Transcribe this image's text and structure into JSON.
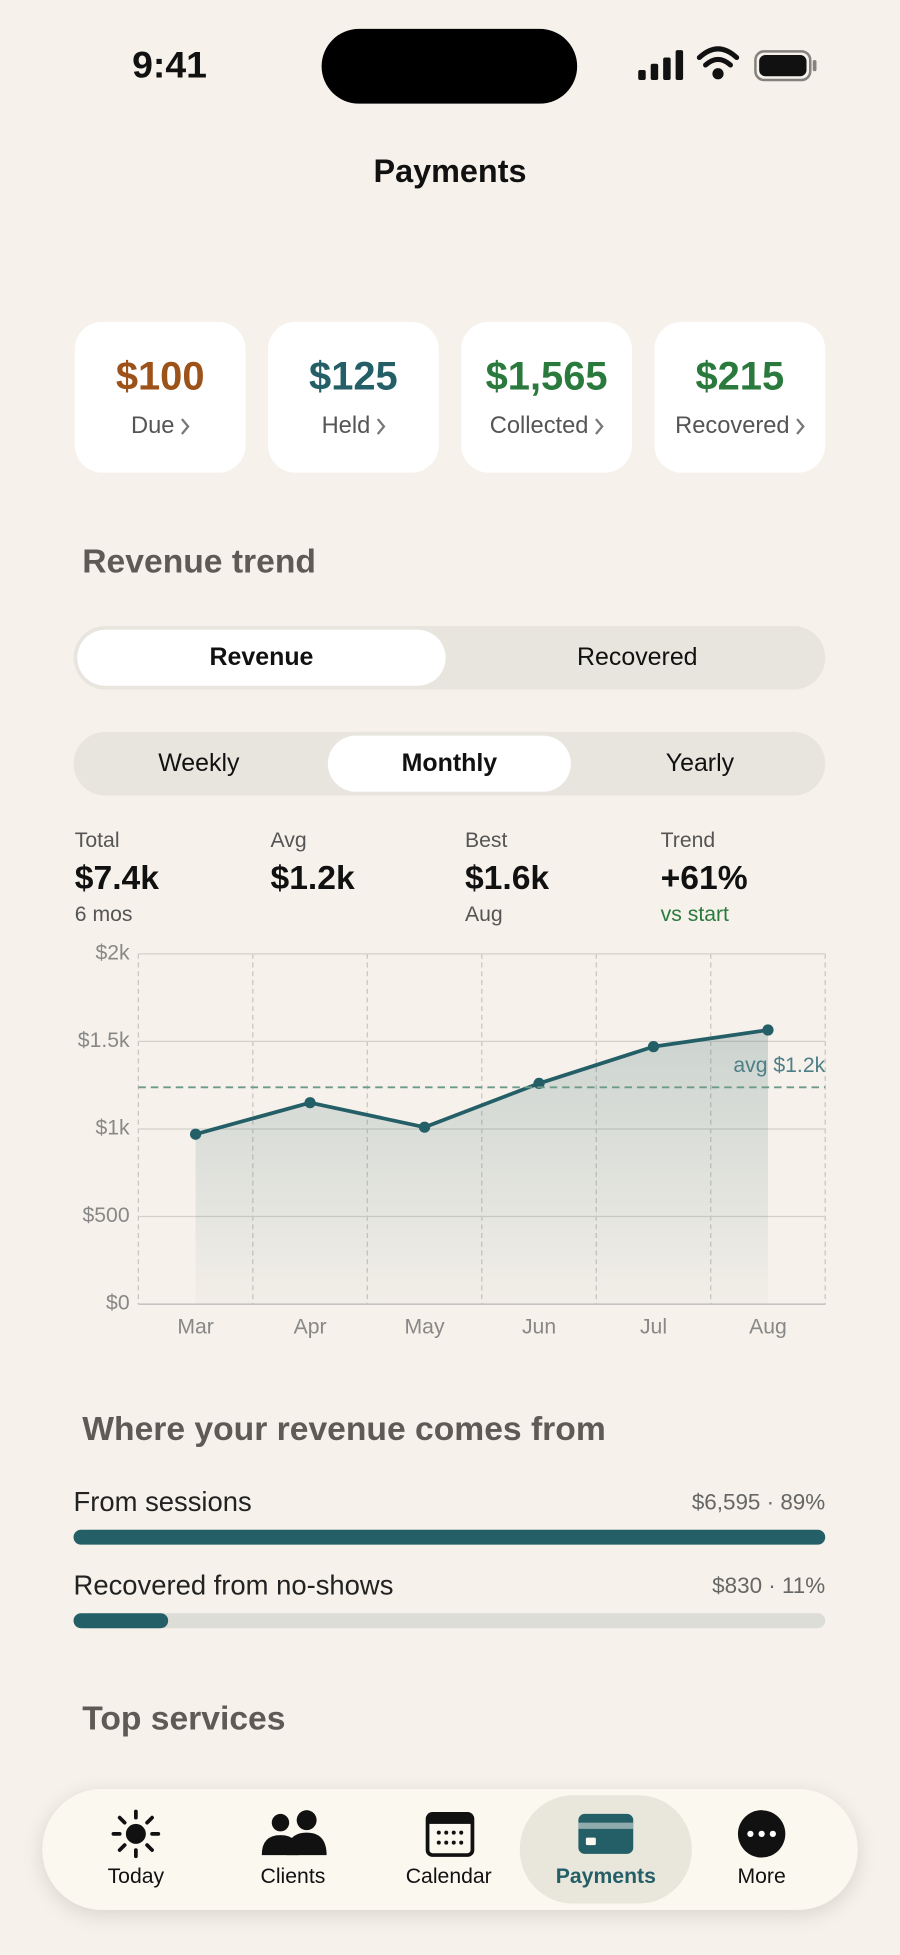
{
  "status_bar": {
    "time": "9:41"
  },
  "header": {
    "title": "Payments"
  },
  "summary_cards": [
    {
      "amount": "$100",
      "label": "Due",
      "color": "#9c5219"
    },
    {
      "amount": "$125",
      "label": "Held",
      "color": "#245e67"
    },
    {
      "amount": "$1,565",
      "label": "Collected",
      "color": "#2a7a3e"
    },
    {
      "amount": "$215",
      "label": "Recovered",
      "color": "#2a7a3e"
    }
  ],
  "revenue_trend": {
    "title": "Revenue trend",
    "mode_toggle": {
      "options": [
        "Revenue",
        "Recovered"
      ],
      "active": 0
    },
    "period_toggle": {
      "options": [
        "Weekly",
        "Monthly",
        "Yearly"
      ],
      "active": 1
    },
    "stats": [
      {
        "label": "Total",
        "value": "$7.4k",
        "sub": "6 mos"
      },
      {
        "label": "Avg",
        "value": "$1.2k"
      },
      {
        "label": "Best",
        "value": "$1.6k",
        "sub": "Aug"
      },
      {
        "label": "Trend",
        "value": "+61%",
        "sub": "vs start",
        "sub_color": "#2a7a3e"
      }
    ]
  },
  "chart_data": {
    "type": "line",
    "categories": [
      "Mar",
      "Apr",
      "May",
      "Jun",
      "Jul",
      "Aug"
    ],
    "series": [
      {
        "name": "Revenue",
        "color": "#245e67",
        "values": [
          970,
          1150,
          1010,
          1260,
          1470,
          1565
        ]
      }
    ],
    "ylim": [
      0,
      2000
    ],
    "yticks": [
      {
        "value": 0,
        "label": "$0"
      },
      {
        "value": 500,
        "label": "$500"
      },
      {
        "value": 1000,
        "label": "$1k"
      },
      {
        "value": 1500,
        "label": "$1.5k"
      },
      {
        "value": 2000,
        "label": "$2k"
      }
    ],
    "avg_line": {
      "value": 1237.5,
      "label": "avg $1.2k"
    },
    "grid": true
  },
  "revenue_sources": {
    "title": "Where your revenue comes from",
    "items": [
      {
        "name": "From sessions",
        "value": 6595,
        "percent": 89,
        "label": "$6,595 · 89%"
      },
      {
        "name": "Recovered from no-shows",
        "value": 830,
        "percent": 11,
        "label": "$830 · 11%"
      }
    ]
  },
  "top_services": {
    "title": "Top services"
  },
  "tab_bar": {
    "tabs": [
      "Today",
      "Clients",
      "Calendar",
      "Payments",
      "More"
    ],
    "active": 3
  }
}
